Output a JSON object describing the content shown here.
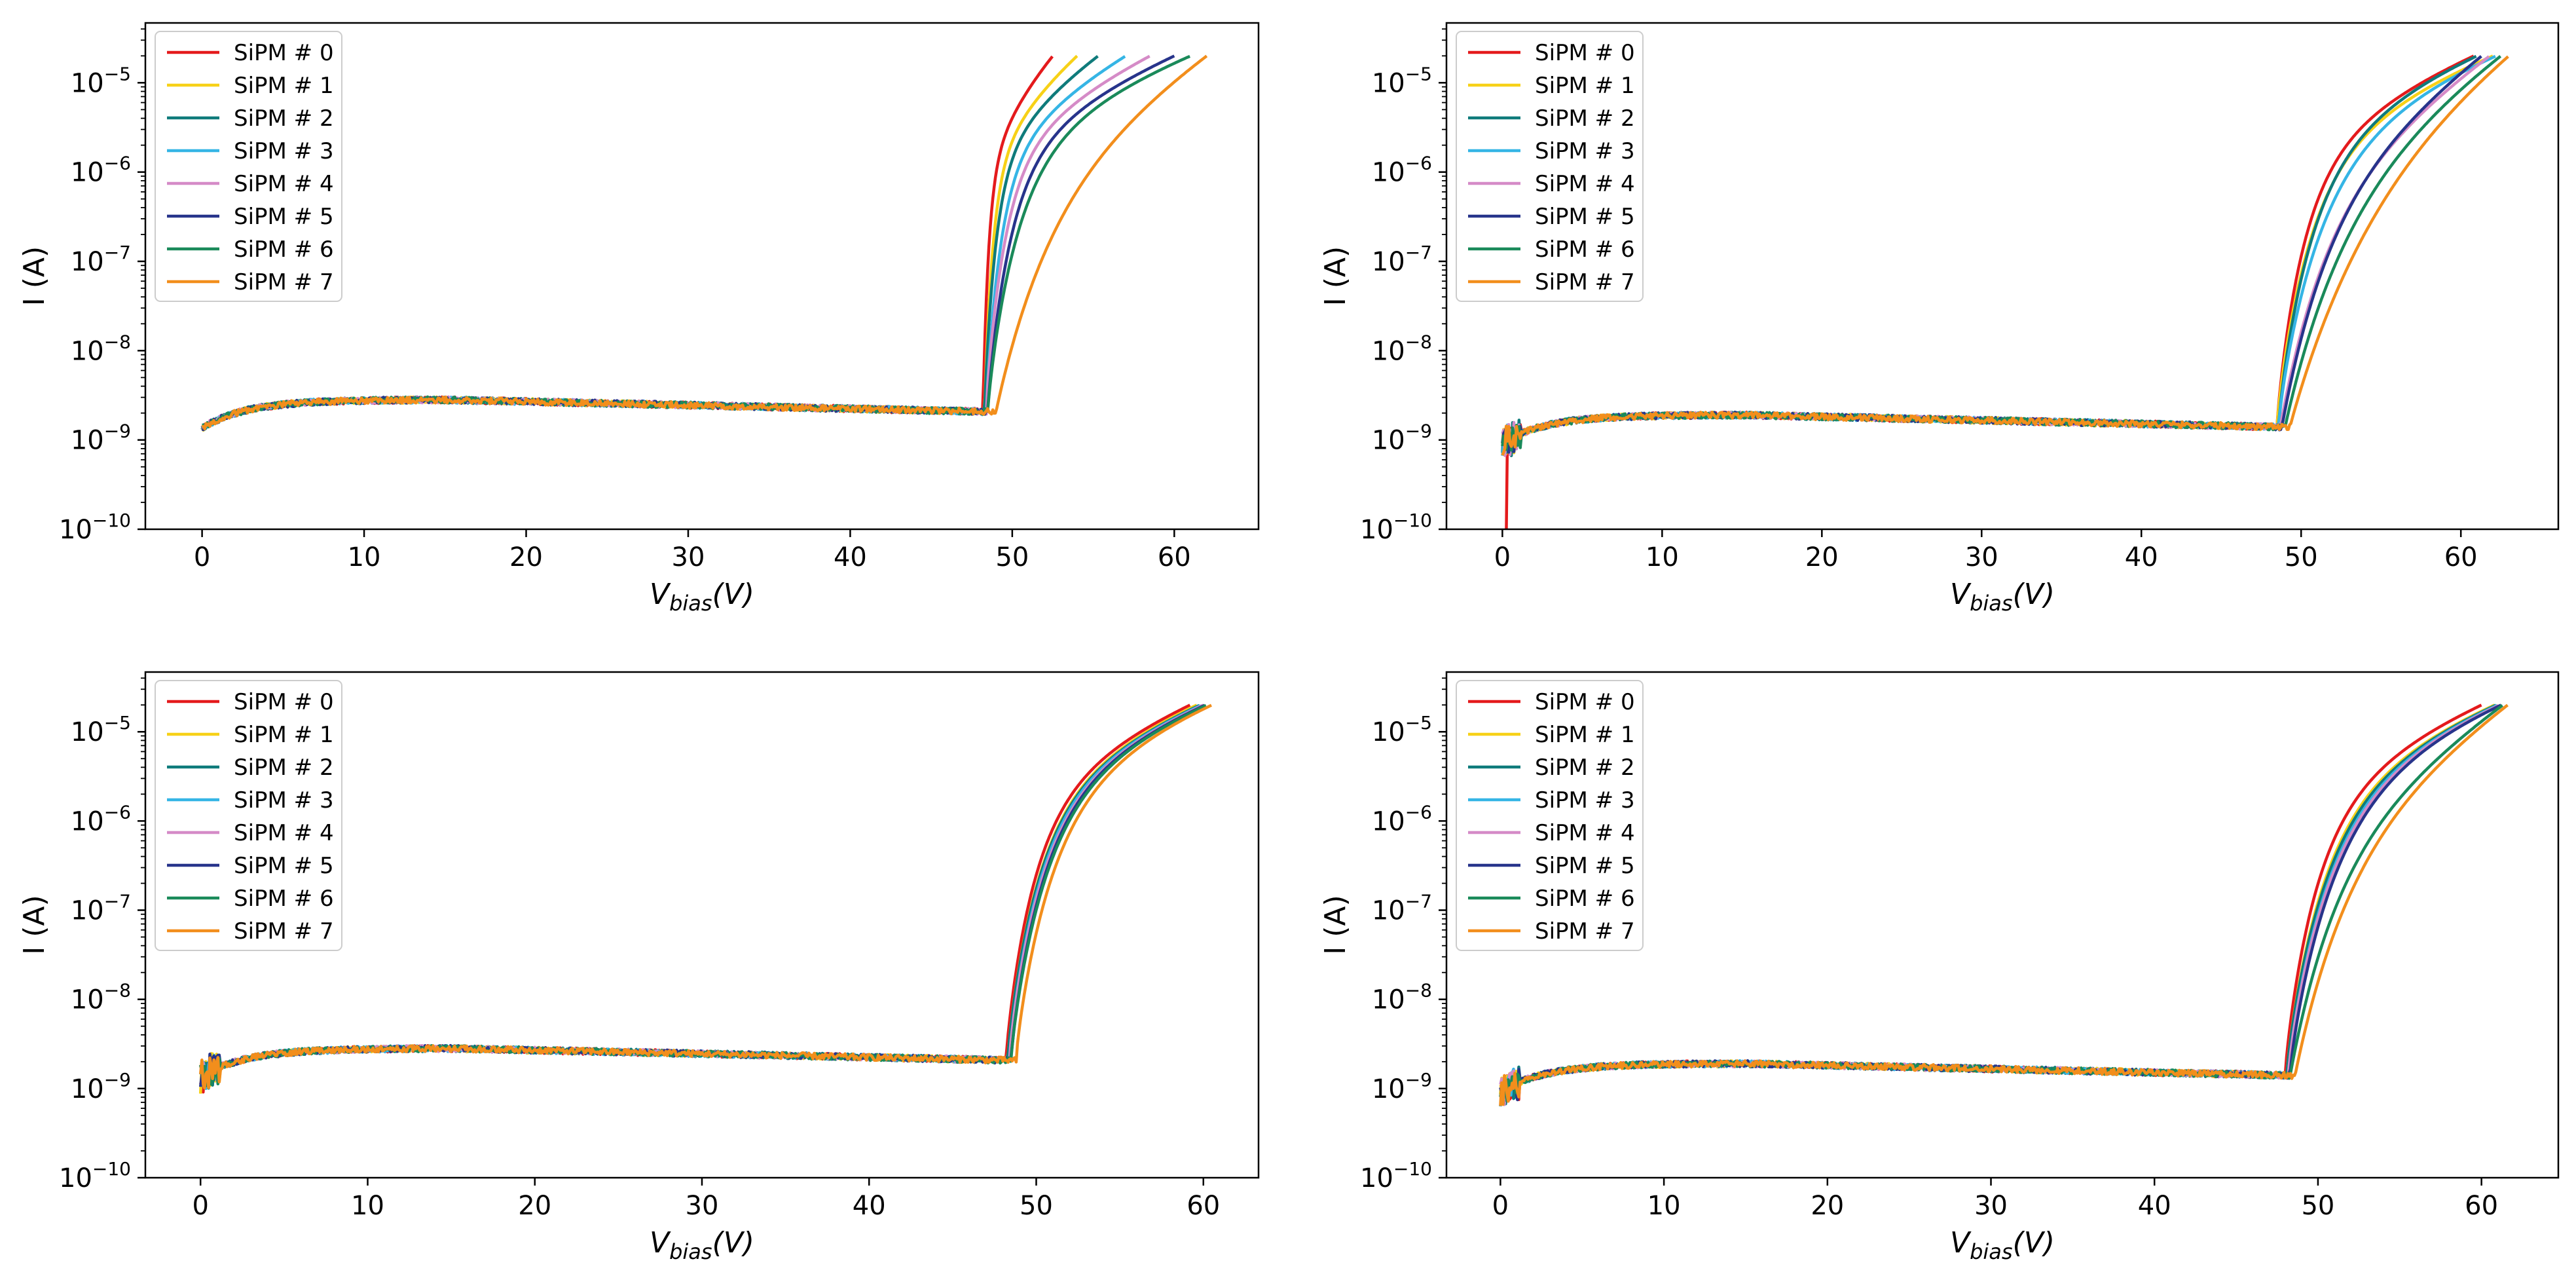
{
  "figure": {
    "layout": "2x2 grid of log-scale I-V curves",
    "series_names": [
      "SiPM # 0",
      "SiPM # 1",
      "SiPM # 2",
      "SiPM # 3",
      "SiPM # 4",
      "SiPM # 5",
      "SiPM # 6",
      "SiPM # 7"
    ],
    "series_colors": [
      "#e41a1c",
      "#f7d117",
      "#0f7b7b",
      "#35b5e5",
      "#d58bc7",
      "#27348b",
      "#1a8a5a",
      "#f28e1c"
    ]
  },
  "chart_data": [
    {
      "type": "line",
      "panel": "top-left",
      "title": "",
      "xlabel": "V_bias(V)",
      "xlabel_main": "V",
      "xlabel_sub": "bias",
      "xlabel_suffix": "(V)",
      "ylabel": "I (A)",
      "yscale": "log",
      "xlim": [
        -3.5,
        65.2
      ],
      "ylim_exp": [
        -10,
        -4.33
      ],
      "xticks": [
        0,
        10,
        20,
        30,
        40,
        50,
        60
      ],
      "yticks_exp": [
        -10,
        -9,
        -8,
        -7,
        -6,
        -5
      ],
      "legend": "top-left",
      "series": [
        {
          "name": "SiPM # 0",
          "color": "#e41a1c",
          "knee": 48.2,
          "vmax": 52.5,
          "shape": 0.5
        },
        {
          "name": "SiPM # 1",
          "color": "#f7d117",
          "knee": 48.3,
          "vmax": 54.0,
          "shape": 0.55
        },
        {
          "name": "SiPM # 2",
          "color": "#0f7b7b",
          "knee": 48.3,
          "vmax": 55.3,
          "shape": 0.6
        },
        {
          "name": "SiPM # 3",
          "color": "#35b5e5",
          "knee": 48.4,
          "vmax": 57.0,
          "shape": 0.65
        },
        {
          "name": "SiPM # 4",
          "color": "#d58bc7",
          "knee": 48.4,
          "vmax": 58.5,
          "shape": 0.7
        },
        {
          "name": "SiPM # 5",
          "color": "#27348b",
          "knee": 48.5,
          "vmax": 60.0,
          "shape": 0.75
        },
        {
          "name": "SiPM # 6",
          "color": "#1a8a5a",
          "knee": 48.5,
          "vmax": 61.0,
          "shape": 0.9
        },
        {
          "name": "SiPM # 7",
          "color": "#f28e1c",
          "knee": 49.0,
          "vmax": 62.0,
          "shape": 1.6
        }
      ]
    },
    {
      "type": "line",
      "panel": "top-right",
      "title": "",
      "xlabel": "V_bias(V)",
      "xlabel_main": "V",
      "xlabel_sub": "bias",
      "xlabel_suffix": "(V)",
      "ylabel": "I (A)",
      "yscale": "log",
      "xlim": [
        -3.5,
        66.1
      ],
      "ylim_exp": [
        -10,
        -4.33
      ],
      "xticks": [
        0,
        10,
        20,
        30,
        40,
        50,
        60
      ],
      "yticks_exp": [
        -10,
        -9,
        -8,
        -7,
        -6,
        -5
      ],
      "legend": "top-left",
      "series": [
        {
          "name": "SiPM # 0",
          "color": "#e41a1c",
          "knee": 48.5,
          "vmax": 60.8,
          "shape": 0.85
        },
        {
          "name": "SiPM # 1",
          "color": "#f7d117",
          "knee": 48.5,
          "vmax": 62.0,
          "shape": 0.95
        },
        {
          "name": "SiPM # 2",
          "color": "#0f7b7b",
          "knee": 48.6,
          "vmax": 61.0,
          "shape": 1.05
        },
        {
          "name": "SiPM # 3",
          "color": "#35b5e5",
          "knee": 48.6,
          "vmax": 62.2,
          "shape": 1.2
        },
        {
          "name": "SiPM # 4",
          "color": "#d58bc7",
          "knee": 48.7,
          "vmax": 61.8,
          "shape": 1.35
        },
        {
          "name": "SiPM # 5",
          "color": "#27348b",
          "knee": 48.8,
          "vmax": 61.3,
          "shape": 1.45
        },
        {
          "name": "SiPM # 6",
          "color": "#1a8a5a",
          "knee": 49.0,
          "vmax": 62.5,
          "shape": 1.7
        },
        {
          "name": "SiPM # 7",
          "color": "#f28e1c",
          "knee": 49.3,
          "vmax": 63.0,
          "shape": 2.3
        }
      ]
    },
    {
      "type": "line",
      "panel": "bottom-left",
      "title": "",
      "xlabel": "V_bias(V)",
      "xlabel_main": "V",
      "xlabel_sub": "bias",
      "xlabel_suffix": "(V)",
      "ylabel": "I (A)",
      "yscale": "log",
      "xlim": [
        -3.3,
        63.3
      ],
      "ylim_exp": [
        -10,
        -4.33
      ],
      "xticks": [
        0,
        10,
        20,
        30,
        40,
        50,
        60
      ],
      "yticks_exp": [
        -10,
        -9,
        -8,
        -7,
        -6,
        -5
      ],
      "legend": "top-left",
      "series": [
        {
          "name": "SiPM # 0",
          "color": "#e41a1c",
          "knee": 48.2,
          "vmax": 59.2,
          "shape": 0.95
        },
        {
          "name": "SiPM # 1",
          "color": "#f7d117",
          "knee": 48.3,
          "vmax": 59.6,
          "shape": 1.0
        },
        {
          "name": "SiPM # 2",
          "color": "#0f7b7b",
          "knee": 48.3,
          "vmax": 59.8,
          "shape": 1.0
        },
        {
          "name": "SiPM # 3",
          "color": "#35b5e5",
          "knee": 48.4,
          "vmax": 59.9,
          "shape": 1.0
        },
        {
          "name": "SiPM # 4",
          "color": "#d58bc7",
          "knee": 48.4,
          "vmax": 60.0,
          "shape": 1.05
        },
        {
          "name": "SiPM # 5",
          "color": "#27348b",
          "knee": 48.5,
          "vmax": 60.1,
          "shape": 1.05
        },
        {
          "name": "SiPM # 6",
          "color": "#1a8a5a",
          "knee": 48.5,
          "vmax": 60.2,
          "shape": 1.1
        },
        {
          "name": "SiPM # 7",
          "color": "#f28e1c",
          "knee": 48.8,
          "vmax": 60.5,
          "shape": 1.15
        }
      ]
    },
    {
      "type": "line",
      "panel": "bottom-right",
      "title": "",
      "xlabel": "V_bias(V)",
      "xlabel_main": "V",
      "xlabel_sub": "bias",
      "xlabel_suffix": "(V)",
      "ylabel": "I (A)",
      "yscale": "log",
      "xlim": [
        -3.3,
        64.7
      ],
      "ylim_exp": [
        -10,
        -4.33
      ],
      "xticks": [
        0,
        10,
        20,
        30,
        40,
        50,
        60
      ],
      "yticks_exp": [
        -10,
        -9,
        -8,
        -7,
        -6,
        -5
      ],
      "legend": "top-left",
      "series": [
        {
          "name": "SiPM # 0",
          "color": "#e41a1c",
          "knee": 48.0,
          "vmax": 60.0,
          "shape": 1.0
        },
        {
          "name": "SiPM # 1",
          "color": "#f7d117",
          "knee": 48.1,
          "vmax": 60.8,
          "shape": 1.1
        },
        {
          "name": "SiPM # 2",
          "color": "#0f7b7b",
          "knee": 48.1,
          "vmax": 60.9,
          "shape": 1.15
        },
        {
          "name": "SiPM # 3",
          "color": "#35b5e5",
          "knee": 48.2,
          "vmax": 61.0,
          "shape": 1.2
        },
        {
          "name": "SiPM # 4",
          "color": "#d58bc7",
          "knee": 48.2,
          "vmax": 61.1,
          "shape": 1.25
        },
        {
          "name": "SiPM # 5",
          "color": "#27348b",
          "knee": 48.3,
          "vmax": 61.2,
          "shape": 1.3
        },
        {
          "name": "SiPM # 6",
          "color": "#1a8a5a",
          "knee": 48.3,
          "vmax": 61.3,
          "shape": 1.35
        },
        {
          "name": "SiPM # 7",
          "color": "#f28e1c",
          "knee": 48.6,
          "vmax": 61.6,
          "shape": 1.55
        }
      ]
    }
  ]
}
